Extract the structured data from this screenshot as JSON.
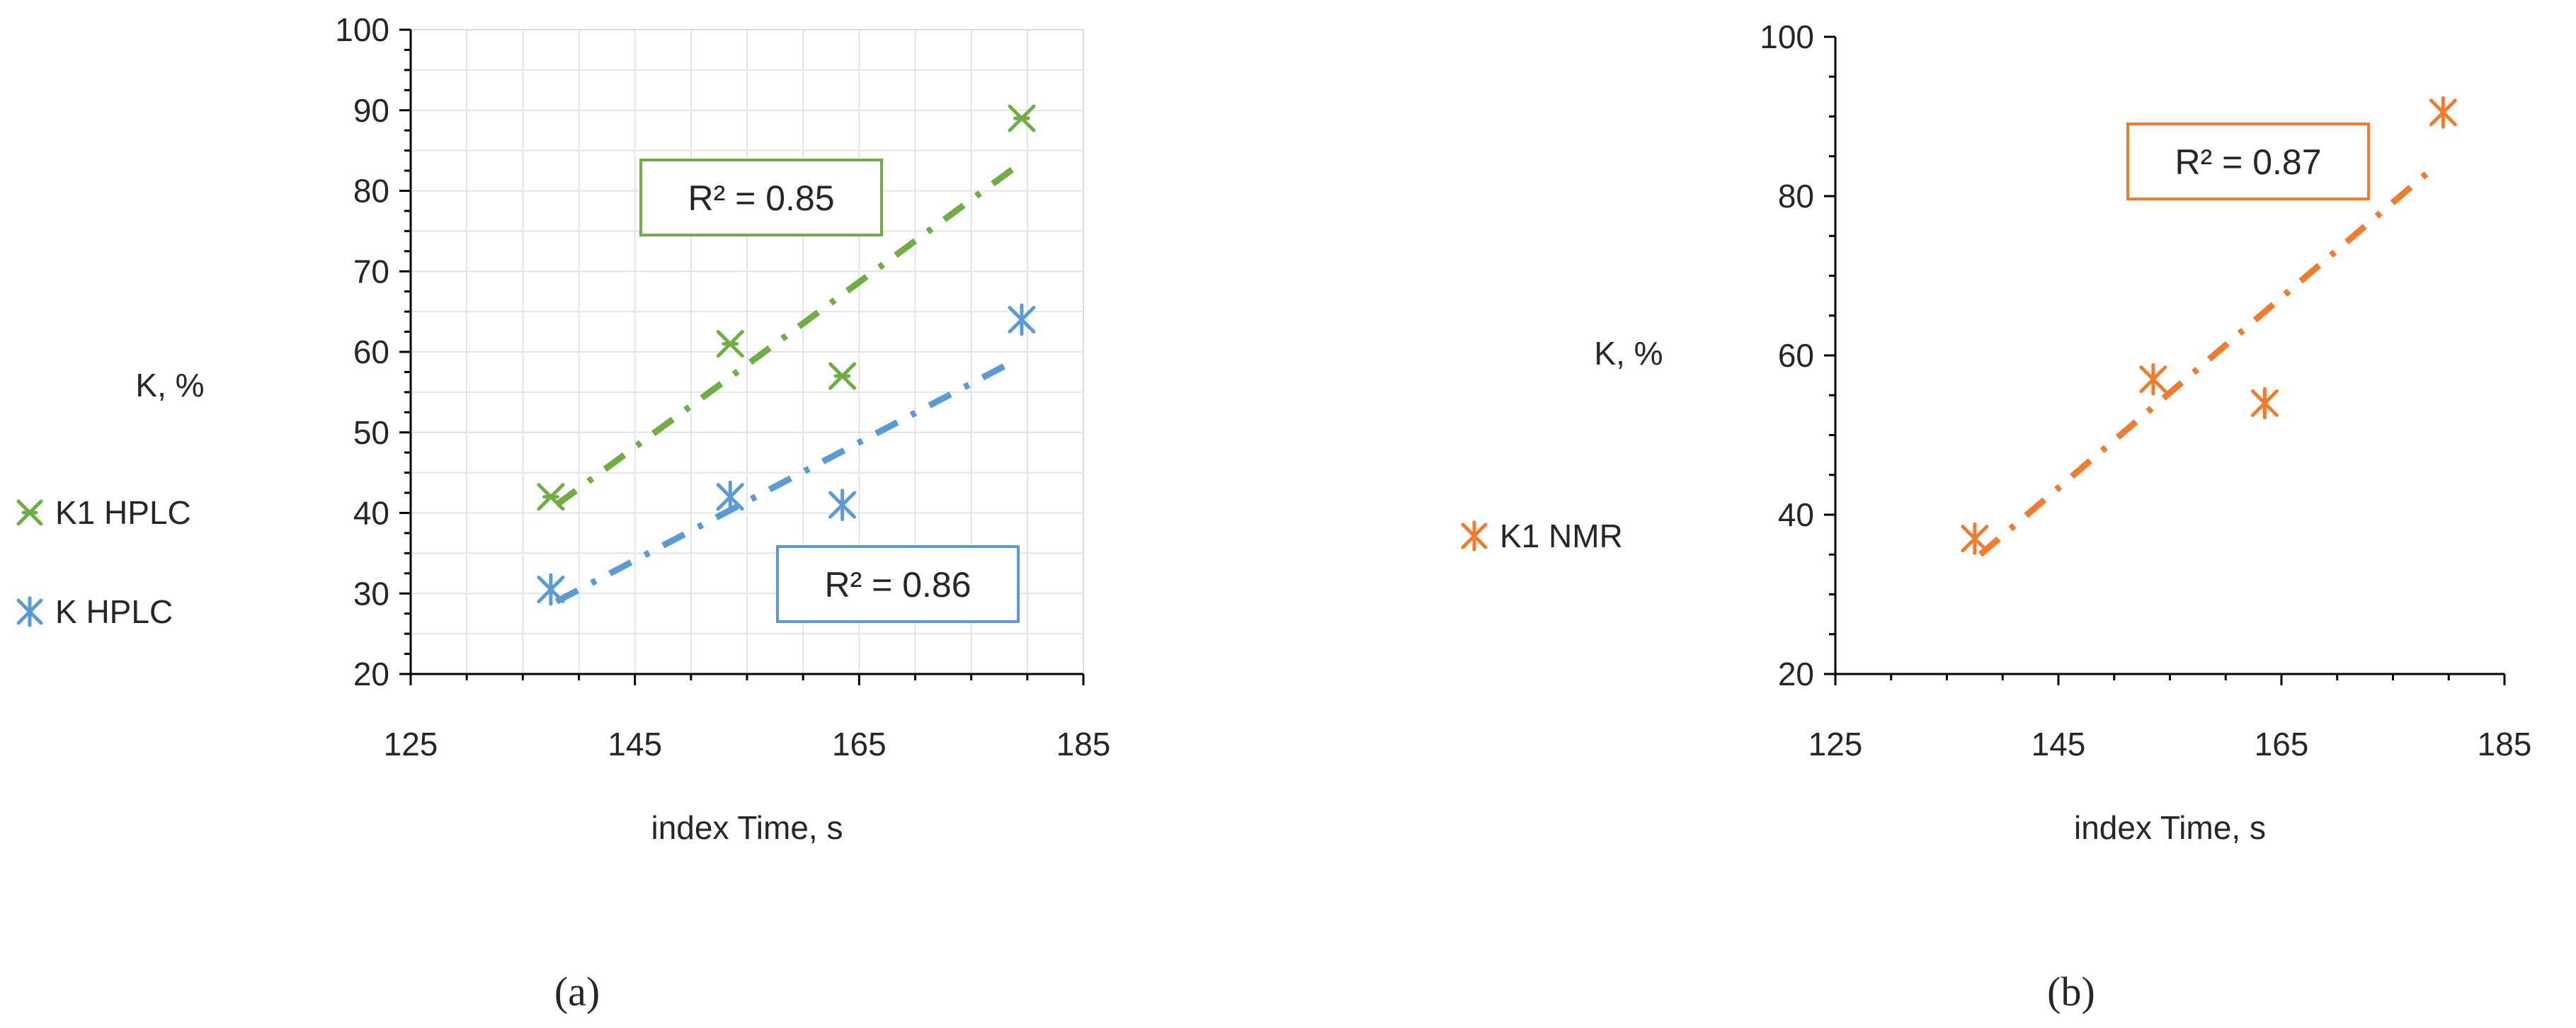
{
  "chart_data": [
    {
      "type": "scatter",
      "panel_label": "(a)",
      "xlabel": "index Time, s",
      "ylabel": "K, %",
      "xlim": [
        125,
        185
      ],
      "ylim": [
        20,
        100
      ],
      "xticks": [
        125,
        145,
        165,
        185
      ],
      "yticks": [
        20,
        30,
        40,
        50,
        60,
        70,
        80,
        90,
        100
      ],
      "grid": true,
      "legend_position": "left",
      "series": [
        {
          "name": "K1 HPLC",
          "color": "#70ad47",
          "marker": "star-x",
          "points": [
            {
              "x": 137.5,
              "y": 42
            },
            {
              "x": 153.5,
              "y": 61
            },
            {
              "x": 163.5,
              "y": 57
            },
            {
              "x": 179.5,
              "y": 89
            }
          ],
          "trendline": {
            "x": [
              138,
              179
            ],
            "y": [
              41,
              83
            ]
          },
          "r2_label": "R² = 0.85"
        },
        {
          "name": "K HPLC",
          "color": "#5b9bd5",
          "marker": "asterisk",
          "points": [
            {
              "x": 137.5,
              "y": 30.5
            },
            {
              "x": 153.5,
              "y": 42
            },
            {
              "x": 163.5,
              "y": 41
            },
            {
              "x": 179.5,
              "y": 64
            }
          ],
          "trendline": {
            "x": [
              138,
              179
            ],
            "y": [
              29,
              59
            ]
          },
          "r2_label": "R² = 0.86"
        }
      ]
    },
    {
      "type": "scatter",
      "panel_label": "(b)",
      "xlabel": "index Time,  s",
      "ylabel": "K, %",
      "xlim": [
        125,
        185
      ],
      "ylim": [
        20,
        100
      ],
      "xticks": [
        125,
        145,
        165,
        185
      ],
      "yticks": [
        20,
        40,
        60,
        80,
        100
      ],
      "grid": false,
      "legend_position": "left",
      "series": [
        {
          "name": "K1 NMR",
          "color": "#ed7d31",
          "marker": "asterisk",
          "points": [
            {
              "x": 137.5,
              "y": 37
            },
            {
              "x": 153.5,
              "y": 57
            },
            {
              "x": 163.5,
              "y": 54
            },
            {
              "x": 179.5,
              "y": 90.5
            }
          ],
          "trendline": {
            "x": [
              138,
              179
            ],
            "y": [
              35,
              84
            ]
          },
          "r2_label": "R² = 0.87"
        }
      ]
    }
  ]
}
